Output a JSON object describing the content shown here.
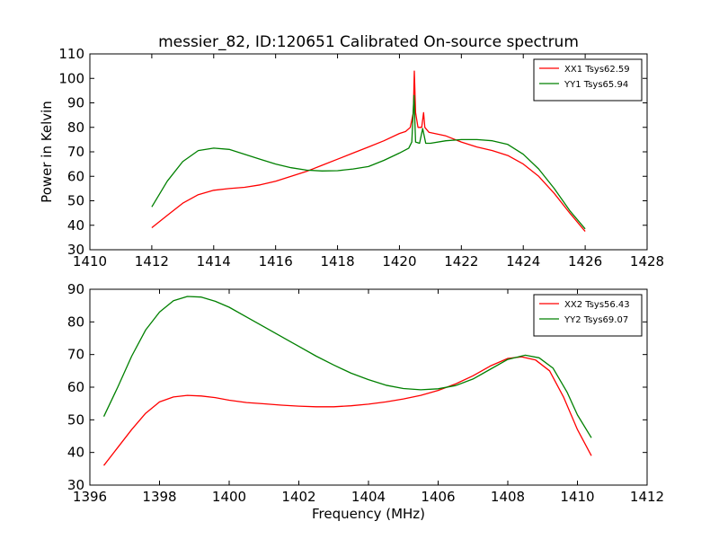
{
  "figure": {
    "title": "messier_82, ID:120651 Calibrated On-source spectrum"
  },
  "chart_data": [
    {
      "type": "line",
      "title": "messier_82, ID:120651 Calibrated On-source spectrum",
      "xlabel": "",
      "ylabel": "Power in Kelvin",
      "xlim": [
        1410,
        1428
      ],
      "ylim": [
        30,
        110
      ],
      "xticks": [
        1410,
        1412,
        1414,
        1416,
        1418,
        1420,
        1422,
        1424,
        1426,
        1428
      ],
      "yticks": [
        30,
        40,
        50,
        60,
        70,
        80,
        90,
        100,
        110
      ],
      "grid": false,
      "legend_position": "top-right",
      "series": [
        {
          "name": "XX1 Tsys62.59",
          "color": "#ff0000",
          "points": [
            [
              1412.0,
              39
            ],
            [
              1412.5,
              44
            ],
            [
              1413.0,
              49
            ],
            [
              1413.5,
              52.5
            ],
            [
              1414.0,
              54.3
            ],
            [
              1414.5,
              55
            ],
            [
              1415.0,
              55.5
            ],
            [
              1415.5,
              56.5
            ],
            [
              1416.0,
              58
            ],
            [
              1416.5,
              60
            ],
            [
              1417.0,
              62
            ],
            [
              1417.5,
              64.5
            ],
            [
              1418.0,
              67
            ],
            [
              1418.5,
              69.5
            ],
            [
              1419.0,
              72
            ],
            [
              1419.5,
              74.5
            ],
            [
              1420.0,
              77.5
            ],
            [
              1420.2,
              78.3
            ],
            [
              1420.35,
              80
            ],
            [
              1420.45,
              86
            ],
            [
              1420.48,
              103
            ],
            [
              1420.52,
              86
            ],
            [
              1420.6,
              80
            ],
            [
              1420.72,
              80
            ],
            [
              1420.78,
              86
            ],
            [
              1420.82,
              80
            ],
            [
              1420.95,
              78
            ],
            [
              1421.5,
              76.5
            ],
            [
              1422.0,
              74
            ],
            [
              1422.5,
              72
            ],
            [
              1423.0,
              70.5
            ],
            [
              1423.5,
              68.5
            ],
            [
              1424.0,
              65
            ],
            [
              1424.5,
              60
            ],
            [
              1425.0,
              53
            ],
            [
              1425.5,
              45
            ],
            [
              1426.0,
              37.5
            ]
          ]
        },
        {
          "name": "YY1 Tsys65.94",
          "color": "#008000",
          "points": [
            [
              1412.0,
              47.5
            ],
            [
              1412.5,
              58
            ],
            [
              1413.0,
              66
            ],
            [
              1413.5,
              70.5
            ],
            [
              1414.0,
              71.5
            ],
            [
              1414.5,
              71
            ],
            [
              1415.0,
              69
            ],
            [
              1415.5,
              67
            ],
            [
              1416.0,
              65
            ],
            [
              1416.5,
              63.5
            ],
            [
              1417.0,
              62.5
            ],
            [
              1417.5,
              62.2
            ],
            [
              1418.0,
              62.3
            ],
            [
              1418.5,
              63
            ],
            [
              1419.0,
              64
            ],
            [
              1419.5,
              66.5
            ],
            [
              1420.0,
              69.5
            ],
            [
              1420.3,
              71.5
            ],
            [
              1420.4,
              74
            ],
            [
              1420.47,
              93
            ],
            [
              1420.52,
              74
            ],
            [
              1420.65,
              73.5
            ],
            [
              1420.75,
              79.5
            ],
            [
              1420.85,
              73.5
            ],
            [
              1421.0,
              73.5
            ],
            [
              1421.5,
              74.5
            ],
            [
              1422.0,
              75
            ],
            [
              1422.5,
              75
            ],
            [
              1423.0,
              74.5
            ],
            [
              1423.5,
              73
            ],
            [
              1424.0,
              69
            ],
            [
              1424.5,
              63
            ],
            [
              1425.0,
              55
            ],
            [
              1425.5,
              46
            ],
            [
              1426.0,
              38.5
            ]
          ]
        }
      ]
    },
    {
      "type": "line",
      "title": "",
      "xlabel": "Frequency (MHz)",
      "ylabel": "",
      "xlim": [
        1396,
        1412
      ],
      "ylim": [
        30,
        90
      ],
      "xticks": [
        1396,
        1398,
        1400,
        1402,
        1404,
        1406,
        1408,
        1410,
        1412
      ],
      "yticks": [
        30,
        40,
        50,
        60,
        70,
        80,
        90
      ],
      "grid": false,
      "legend_position": "top-right",
      "series": [
        {
          "name": "XX2 Tsys56.43",
          "color": "#ff0000",
          "points": [
            [
              1396.4,
              36
            ],
            [
              1396.8,
              41.5
            ],
            [
              1397.2,
              47
            ],
            [
              1397.6,
              52
            ],
            [
              1398.0,
              55.5
            ],
            [
              1398.4,
              57
            ],
            [
              1398.8,
              57.5
            ],
            [
              1399.2,
              57.3
            ],
            [
              1399.6,
              56.8
            ],
            [
              1400.0,
              56
            ],
            [
              1400.5,
              55.3
            ],
            [
              1401.0,
              54.9
            ],
            [
              1401.5,
              54.5
            ],
            [
              1402.0,
              54.2
            ],
            [
              1402.5,
              54
            ],
            [
              1403.0,
              54
            ],
            [
              1403.5,
              54.3
            ],
            [
              1404.0,
              54.8
            ],
            [
              1404.5,
              55.5
            ],
            [
              1405.0,
              56.4
            ],
            [
              1405.5,
              57.5
            ],
            [
              1406.0,
              59
            ],
            [
              1406.5,
              61
            ],
            [
              1407.0,
              63.5
            ],
            [
              1407.5,
              66.5
            ],
            [
              1408.0,
              68.8
            ],
            [
              1408.4,
              69.3
            ],
            [
              1408.8,
              68.3
            ],
            [
              1409.2,
              65
            ],
            [
              1409.6,
              57
            ],
            [
              1410.0,
              47
            ],
            [
              1410.4,
              39
            ]
          ]
        },
        {
          "name": "YY2 Tsys69.07",
          "color": "#008000",
          "points": [
            [
              1396.4,
              51
            ],
            [
              1396.8,
              60
            ],
            [
              1397.2,
              69.5
            ],
            [
              1397.6,
              77.5
            ],
            [
              1398.0,
              83
            ],
            [
              1398.4,
              86.5
            ],
            [
              1398.8,
              87.8
            ],
            [
              1399.2,
              87.6
            ],
            [
              1399.6,
              86.3
            ],
            [
              1400.0,
              84.5
            ],
            [
              1400.5,
              81.5
            ],
            [
              1401.0,
              78.5
            ],
            [
              1401.5,
              75.5
            ],
            [
              1402.0,
              72.5
            ],
            [
              1402.5,
              69.5
            ],
            [
              1403.0,
              66.8
            ],
            [
              1403.5,
              64.3
            ],
            [
              1404.0,
              62.3
            ],
            [
              1404.5,
              60.6
            ],
            [
              1405.0,
              59.6
            ],
            [
              1405.5,
              59.2
            ],
            [
              1406.0,
              59.5
            ],
            [
              1406.5,
              60.5
            ],
            [
              1407.0,
              62.5
            ],
            [
              1407.5,
              65.5
            ],
            [
              1408.0,
              68.5
            ],
            [
              1408.5,
              69.8
            ],
            [
              1408.9,
              69
            ],
            [
              1409.3,
              65.8
            ],
            [
              1409.7,
              58.5
            ],
            [
              1410.0,
              51.5
            ],
            [
              1410.4,
              44.5
            ]
          ]
        }
      ]
    }
  ]
}
